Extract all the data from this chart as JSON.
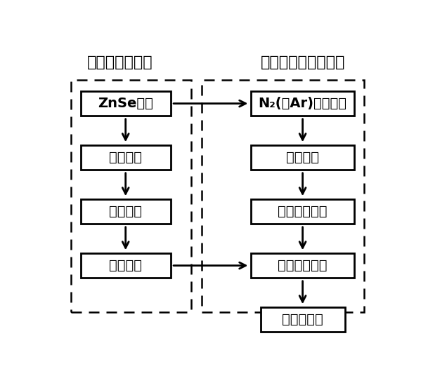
{
  "title_left": "微米分散液制备",
  "title_right": "飞秒激光微流道烧蚀",
  "left_boxes": [
    "ZnSe晶体",
    "机械破碎",
    "湿法球磨",
    "分散稀释"
  ],
  "right_boxes": [
    "N₂(或Ar)鼓泡除气",
    "调节流量",
    "飞秒激光烧蚀",
    "产物持续搞拌"
  ],
  "bottom_box": "量子点溶胶",
  "bg_color": "#ffffff",
  "font_size": 14,
  "title_font_size": 16
}
